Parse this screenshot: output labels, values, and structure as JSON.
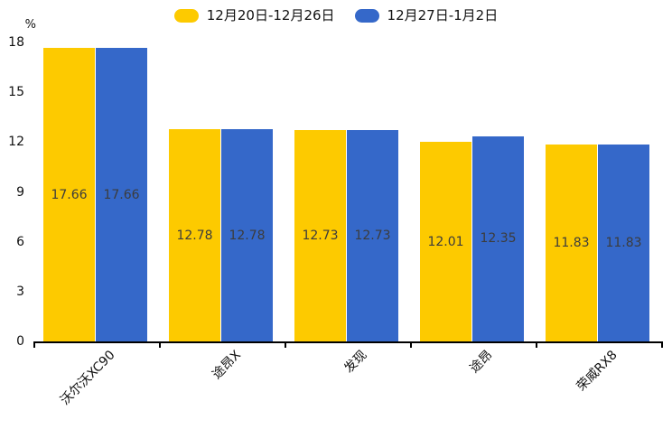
{
  "chart_data": {
    "type": "bar",
    "title": "",
    "unit": "%",
    "categories": [
      "沃尔沃XC90",
      "途昂X",
      "发现",
      "途昂",
      "荣威RX8"
    ],
    "series": [
      {
        "name": "12月20日-12月26日",
        "color": "#FDCA00",
        "values": [
          17.66,
          12.78,
          12.73,
          12.01,
          11.83
        ]
      },
      {
        "name": "12月27日-1月2日",
        "color": "#3568C9",
        "values": [
          17.66,
          12.78,
          12.73,
          12.35,
          11.83
        ]
      }
    ],
    "ylim": [
      0,
      18
    ],
    "yticks": [
      0,
      3,
      6,
      9,
      12,
      15,
      18
    ],
    "xlabel": "",
    "ylabel": "%",
    "grid": false,
    "legend_position": "top",
    "value_label_position": "inside-center"
  },
  "colors": {
    "background": "#FFFFFF",
    "axis_line": "#000000",
    "axis_text": "#111111",
    "value_label_text": "#3C3C3C"
  }
}
